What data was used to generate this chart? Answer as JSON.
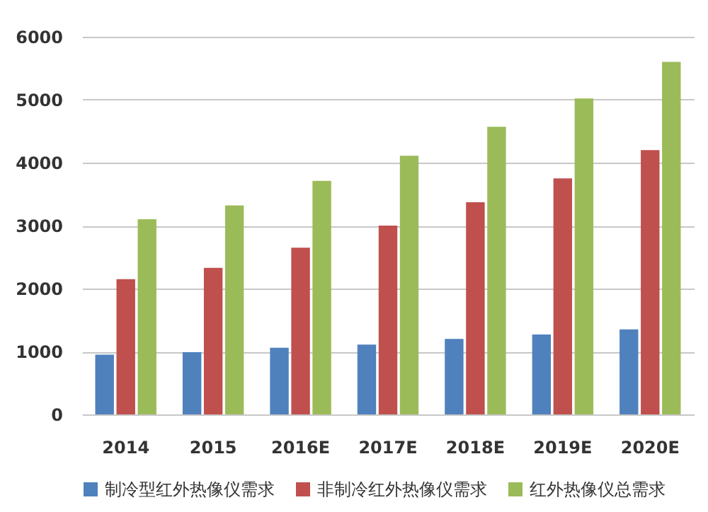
{
  "chart_data": {
    "type": "bar",
    "categories": [
      "2014",
      "2015",
      "2016E",
      "2017E",
      "2018E",
      "2019E",
      "2020E"
    ],
    "series": [
      {
        "name": "制冷型红外热像仪需求",
        "color": "#4f81bd",
        "values": [
          950,
          990,
          1060,
          1110,
          1200,
          1270,
          1350
        ]
      },
      {
        "name": "非制冷红外热像仪需求",
        "color": "#c0504d",
        "values": [
          2150,
          2330,
          2650,
          3000,
          3370,
          3750,
          4200
        ]
      },
      {
        "name": "红外热像仪总需求",
        "color": "#9bbb59",
        "values": [
          3100,
          3320,
          3710,
          4110,
          4570,
          5020,
          5600
        ]
      }
    ],
    "ylim": [
      0,
      6000
    ],
    "yticks": [
      0,
      1000,
      2000,
      3000,
      4000,
      5000,
      6000
    ],
    "grid": "y",
    "legend": "bottom"
  }
}
